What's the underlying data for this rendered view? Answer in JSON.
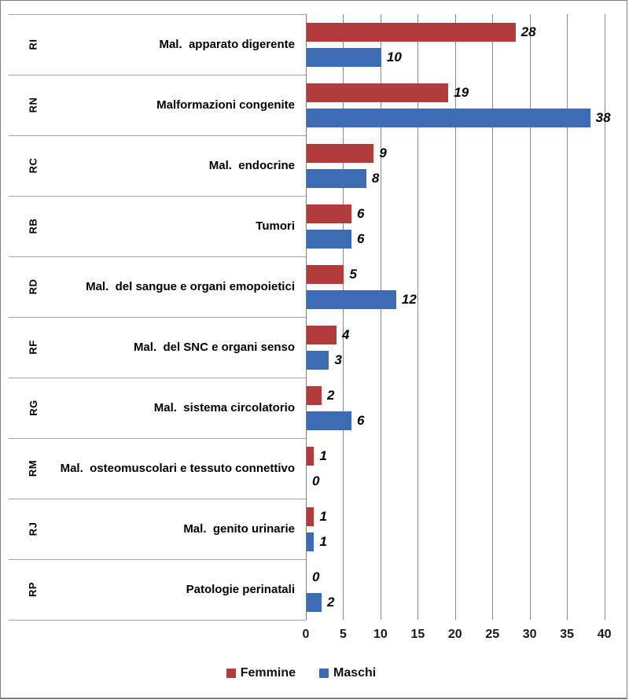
{
  "chart_data": {
    "type": "bar",
    "orientation": "horizontal",
    "title": "",
    "group_codes": [
      "RI",
      "RN",
      "RC",
      "RB",
      "RD",
      "RF",
      "RG",
      "RM",
      "RJ",
      "RP"
    ],
    "categories": [
      "Mal.  apparato digerente",
      "Malformazioni congenite",
      "Mal.  endocrine",
      "Tumori",
      "Mal.  del sangue e organi emopoietici",
      "Mal.  del SNC e organi senso",
      "Mal.  sistema circolatorio",
      "Mal.  osteomuscolari e tessuto connettivo",
      "Mal.  genito urinarie",
      "Patologie perinatali"
    ],
    "series": [
      {
        "name": "Femmine",
        "color": "#B23B3B",
        "values": [
          28,
          19,
          9,
          6,
          5,
          4,
          2,
          1,
          1,
          0
        ]
      },
      {
        "name": "Maschi",
        "color": "#3B6CB4",
        "values": [
          10,
          38,
          8,
          6,
          12,
          3,
          6,
          0,
          1,
          2
        ]
      }
    ],
    "xlim": [
      0,
      40
    ],
    "x_ticks": [
      0,
      5,
      10,
      15,
      20,
      25,
      30,
      35,
      40
    ],
    "grid": true,
    "data_labels": true,
    "legend_position": "bottom"
  },
  "colors": {
    "femmine": "#B23B3B",
    "maschi": "#3B6CB4",
    "gridline": "#8C8C8C",
    "separator": "#A6A6A6",
    "axis": "#808080",
    "border": "#7F7F7F"
  }
}
